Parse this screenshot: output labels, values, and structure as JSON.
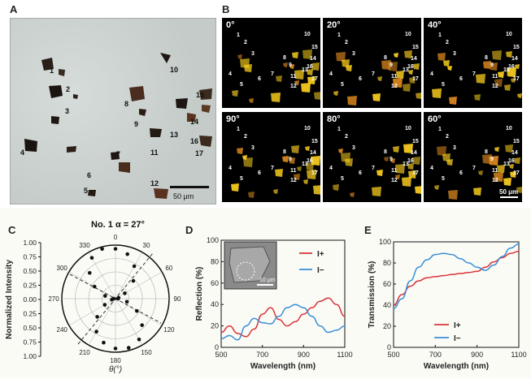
{
  "panels": {
    "a": "A",
    "b": "B",
    "c": "C",
    "d": "D",
    "e": "E"
  },
  "panel_a": {
    "particle_labels": [
      "1",
      "2",
      "3",
      "4",
      "5",
      "6",
      "7",
      "8",
      "9",
      "10",
      "11",
      "12",
      "13",
      "14",
      "15",
      "16",
      "17"
    ],
    "scalebar": "50 μm"
  },
  "panel_b": {
    "angles": [
      "0°",
      "20°",
      "40°",
      "90°",
      "80°",
      "60°"
    ],
    "scalebar": "50 μm"
  },
  "colors": {
    "red_series": "#d9343a",
    "blue_series": "#3a8fd6",
    "glow": "#ffd21f"
  },
  "chart_data": [
    {
      "type": "scatter",
      "coordinate_system": "polar",
      "title": "No. 1 α = 27°",
      "ylabel": "Normalized Intensity",
      "xlabel": "θ(°)",
      "angle_ticks": [
        "0",
        "30",
        "60",
        "90",
        "120",
        "150",
        "180",
        "210",
        "240",
        "270",
        "300",
        "330"
      ],
      "radial_ticks": [
        "1.00",
        "0.75",
        "0.50",
        "0.25",
        "0.00",
        "0.25",
        "0.50",
        "0.75",
        "1.00"
      ],
      "theta": [
        0,
        15,
        30,
        45,
        60,
        75,
        90,
        105,
        120,
        135,
        150,
        165,
        180,
        195,
        210,
        225,
        240,
        255,
        270,
        285,
        300,
        315,
        330,
        345
      ],
      "r": [
        0.93,
        0.86,
        0.7,
        0.47,
        0.2,
        0.06,
        0.05,
        0.22,
        0.46,
        0.7,
        0.88,
        0.95,
        0.93,
        0.85,
        0.71,
        0.48,
        0.23,
        0.07,
        0.04,
        0.2,
        0.45,
        0.68,
        0.88,
        0.96
      ]
    },
    {
      "type": "line",
      "ylabel": "Reflection (%)",
      "xlabel": "Wavelength (nm)",
      "xlim": [
        500,
        1100
      ],
      "ylim": [
        0,
        100
      ],
      "xticks": [
        "500",
        "700",
        "900",
        "1100"
      ],
      "yticks": [
        "0",
        "20",
        "40",
        "60",
        "80",
        "100"
      ],
      "inset_scalebar": "10 μm",
      "series": [
        {
          "name": "I+",
          "x": [
            500,
            540,
            580,
            620,
            660,
            700,
            740,
            780,
            820,
            860,
            900,
            940,
            980,
            1020,
            1060,
            1100
          ],
          "y": [
            14,
            20,
            13,
            10,
            17,
            31,
            37,
            26,
            20,
            24,
            31,
            37,
            43,
            46,
            40,
            29
          ]
        },
        {
          "name": "I−",
          "x": [
            500,
            540,
            580,
            620,
            660,
            700,
            740,
            780,
            820,
            860,
            900,
            940,
            980,
            1020,
            1060,
            1100
          ],
          "y": [
            8,
            11,
            7,
            20,
            27,
            23,
            22,
            29,
            37,
            40,
            37,
            29,
            20,
            14,
            16,
            20
          ]
        }
      ]
    },
    {
      "type": "line",
      "ylabel": "Transmission (%)",
      "xlabel": "Wavelength (nm)",
      "xlim": [
        500,
        1100
      ],
      "ylim": [
        0,
        100
      ],
      "xticks": [
        "500",
        "700",
        "900",
        "1100"
      ],
      "yticks": [
        "0",
        "20",
        "40",
        "60",
        "80",
        "100"
      ],
      "series": [
        {
          "name": "I+",
          "x": [
            500,
            540,
            580,
            620,
            660,
            700,
            740,
            780,
            820,
            860,
            900,
            940,
            980,
            1020,
            1060,
            1100
          ],
          "y": [
            40,
            50,
            58,
            63,
            66,
            67,
            68,
            69,
            70,
            71,
            72,
            76,
            81,
            85,
            89,
            91
          ]
        },
        {
          "name": "I−",
          "x": [
            500,
            540,
            580,
            620,
            660,
            700,
            740,
            780,
            820,
            860,
            900,
            940,
            980,
            1020,
            1060,
            1100
          ],
          "y": [
            37,
            46,
            63,
            76,
            83,
            88,
            89,
            88,
            84,
            80,
            76,
            73,
            78,
            86,
            94,
            98
          ]
        }
      ]
    }
  ]
}
